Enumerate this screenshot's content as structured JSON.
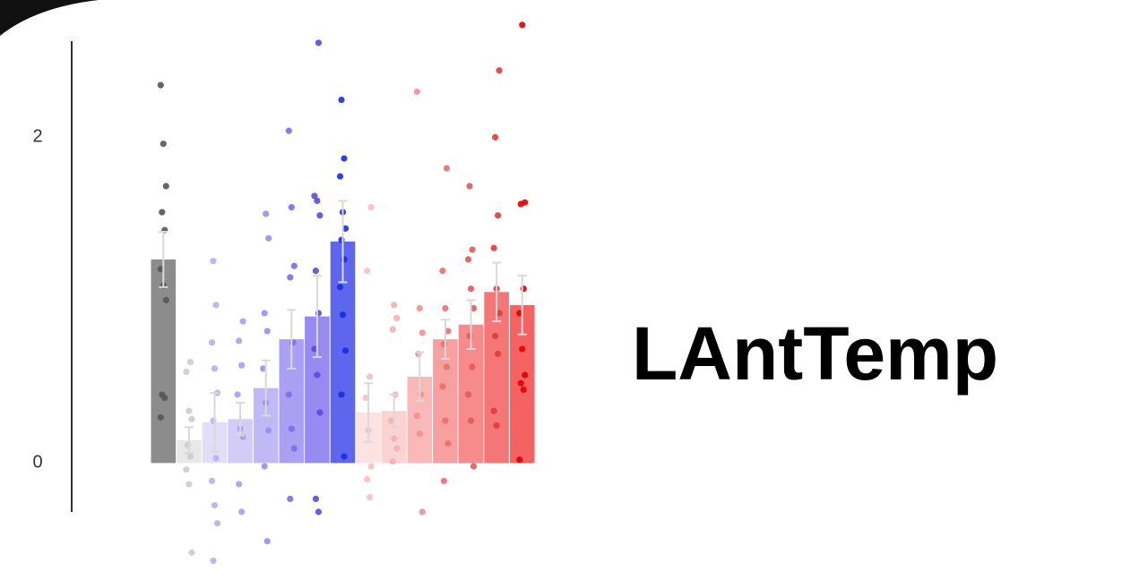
{
  "chart_data": {
    "type": "bar",
    "annotation": "LAntTemp",
    "categories": [
      null,
      null,
      null,
      null,
      null,
      null,
      null,
      null,
      null,
      null,
      null,
      null,
      null,
      null,
      null
    ],
    "values": [
      1.25,
      0.14,
      0.25,
      0.27,
      0.46,
      0.76,
      0.9,
      1.36,
      0.31,
      0.32,
      0.53,
      0.76,
      0.85,
      1.05,
      0.97
    ],
    "errors": [
      0.17,
      0.08,
      0.18,
      0.1,
      0.17,
      0.18,
      0.25,
      0.25,
      0.18,
      0.1,
      0.15,
      0.12,
      0.15,
      0.18,
      0.18
    ],
    "colors": [
      "#8c8c8c",
      "#e8e8e8",
      "#e2def8",
      "#d3ccf8",
      "#c1b8f6",
      "#ab9ff4",
      "#978af1",
      "#5d66ec",
      "#fde2e2",
      "#fcd3d3",
      "#fab8b8",
      "#f89f9f",
      "#f78a8a",
      "#f57676",
      "#f46262"
    ],
    "point_colors": [
      "#555555",
      "#cccccc",
      "#b8aff0",
      "#a99ef0",
      "#9a8ef0",
      "#7b6de8",
      "#5a4ae0",
      "#1a2ee0",
      "#f5c0c0",
      "#f2b0b0",
      "#f09090",
      "#e87070",
      "#e05a5a",
      "#e03c3c",
      "#e00000"
    ],
    "points": [
      [
        2.32,
        1.96,
        1.7,
        1.54,
        1.43,
        1.19,
        1.09,
        1.0,
        0.42,
        0.4,
        0.28
      ],
      [
        0.62,
        0.56,
        0.32,
        0.27,
        0.11,
        0.04,
        -0.04,
        -0.13,
        -0.55
      ],
      [
        1.24,
        0.97,
        0.74,
        0.58,
        0.43,
        0.26,
        0.03,
        -0.11,
        -0.26,
        -0.37,
        -0.6
      ],
      [
        0.87,
        0.75,
        0.6,
        0.42,
        0.21,
        0.16,
        -0.13,
        -0.3
      ],
      [
        1.53,
        1.38,
        0.92,
        0.81,
        0.58,
        0.37,
        0.2,
        -0.02,
        -0.48
      ],
      [
        2.04,
        1.57,
        1.21,
        1.14,
        0.74,
        0.42,
        0.21,
        0.09,
        -0.22
      ],
      [
        2.58,
        1.64,
        1.61,
        1.52,
        1.18,
        0.92,
        0.7,
        0.54,
        0.31,
        -0.22,
        -0.3
      ],
      [
        2.23,
        1.87,
        1.76,
        1.54,
        1.44,
        1.37,
        1.25,
        1.08,
        0.91,
        0.69,
        0.42,
        0.04
      ],
      [
        1.57,
        1.18,
        0.53,
        0.4,
        0.2,
        -0.02,
        -0.1,
        -0.21
      ],
      [
        0.97,
        0.89,
        0.82,
        0.42,
        0.26,
        0.15,
        0.09,
        0.01
      ],
      [
        2.28,
        0.95,
        0.8,
        0.67,
        0.42,
        0.29,
        0.18,
        -0.3
      ],
      [
        1.81,
        1.18,
        0.95,
        0.81,
        0.73,
        0.59,
        0.47,
        0.26,
        0.12,
        -0.11
      ],
      [
        1.7,
        1.31,
        1.25,
        1.07,
        0.95,
        0.78,
        0.59,
        0.42,
        0.26,
        -0.02
      ],
      [
        2.41,
        2.0,
        1.52,
        1.32,
        1.07,
        0.92,
        0.78,
        0.67,
        0.32,
        0.23
      ],
      [
        2.69,
        1.6,
        1.59,
        1.07,
        0.92,
        0.7,
        0.54,
        0.49,
        0.45,
        0.02
      ]
    ],
    "error_color": "#d9d9d9",
    "ylim": [
      -0.3,
      2.7
    ],
    "yticks": [
      0,
      2
    ]
  }
}
